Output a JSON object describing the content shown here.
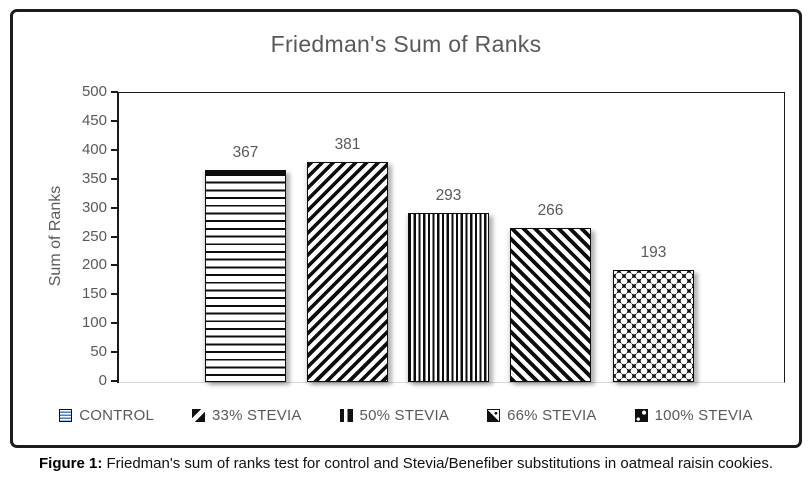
{
  "figure": {
    "caption_label": "Figure 1:",
    "caption_text": " Friedman's sum of ranks test for control and Stevia/Benefiber substitutions in oatmeal raisin cookies."
  },
  "chart_data": {
    "type": "bar",
    "title": "Friedman's Sum of Ranks",
    "ylabel": "Sum of Ranks",
    "xlabel": "",
    "categories": [
      "CONTROL",
      "33% STEVIA",
      "50% STEVIA",
      "66% STEVIA",
      "100% STEVIA"
    ],
    "values": [
      367,
      381,
      293,
      266,
      193
    ],
    "data_labels": [
      "367",
      "381",
      "293",
      "266",
      "193"
    ],
    "ylim": [
      0,
      500
    ],
    "ytick_step": 50,
    "yminor_step": 10,
    "grid": false,
    "show_data_labels": true,
    "legend_position": "bottom",
    "bar_patterns": [
      "horizontal-lines",
      "diagonal-up",
      "vertical-lines",
      "diagonal-down",
      "dots-on-black"
    ],
    "colors": {
      "pattern_foreground": "#0d0d0d",
      "pattern_background": "#ffffff",
      "text_gray": "#595959",
      "plot_border": "#1a1a1a",
      "baseline_gray": "#d9d9d9",
      "legend_control_stripe_blue": "#4a7ebb"
    }
  }
}
